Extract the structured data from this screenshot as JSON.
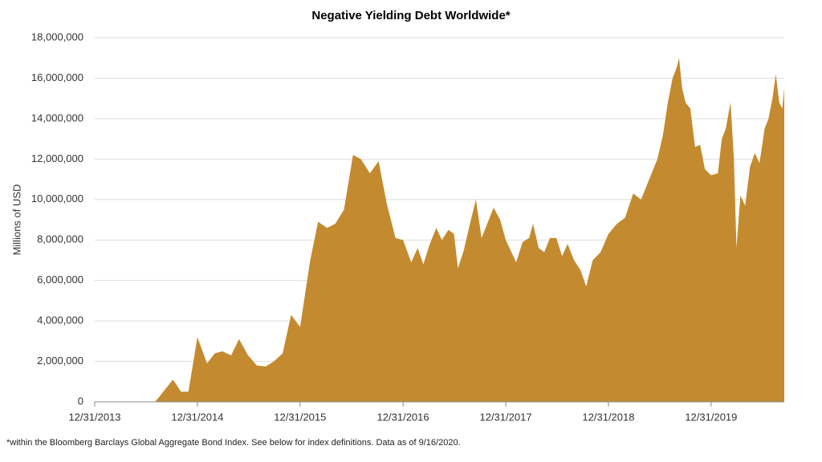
{
  "chart_data": {
    "type": "area",
    "title": "Negative Yielding Debt Worldwide*",
    "y_label": "Millions of USD",
    "footnote": "*within the Bloomberg Barclays Global Aggregate Bond Index. See below for index definitions. Data as of 9/16/2020.",
    "color": "#c48a2f",
    "grid": true,
    "xlim": [
      "12/31/2013",
      "09/16/2020"
    ],
    "xticks": [
      "12/31/2013",
      "12/31/2014",
      "12/31/2015",
      "12/31/2016",
      "12/31/2017",
      "12/31/2018",
      "12/31/2019"
    ],
    "ylim": [
      0,
      18000000
    ],
    "yticks": [
      0,
      {
        "value": 2000000,
        "label": "2,000,000"
      },
      {
        "value": 4000000,
        "label": "4,000,000"
      },
      {
        "value": 6000000,
        "label": "6,000,000"
      },
      {
        "value": 8000000,
        "label": "8,000,000"
      },
      {
        "value": 10000000,
        "label": "10,000,000"
      },
      {
        "value": 12000000,
        "label": "12,000,000"
      },
      {
        "value": 14000000,
        "label": "14,000,000"
      },
      {
        "value": 16000000,
        "label": "16,000,000"
      },
      {
        "value": 18000000,
        "label": "18,000,000"
      }
    ],
    "x": [
      "12/31/2013",
      "08/03/2014",
      "10/05/2014",
      "11/03/2014",
      "11/29/2014",
      "12/31/2014",
      "02/03/2015",
      "03/03/2015",
      "03/29/2015",
      "04/30/2015",
      "05/28/2015",
      "06/29/2015",
      "07/30/2015",
      "08/31/2015",
      "09/29/2015",
      "10/30/2015",
      "11/29/2015",
      "12/31/2015",
      "02/05/2016",
      "03/04/2016",
      "04/05/2016",
      "05/04/2016",
      "06/04/2016",
      "07/06/2016",
      "08/03/2016",
      "09/04/2016",
      "10/05/2016",
      "11/03/2016",
      "12/04/2016",
      "12/31/2016",
      "01/29/2017",
      "02/21/2017",
      "03/13/2017",
      "04/05/2017",
      "04/28/2017",
      "05/18/2017",
      "06/10/2017",
      "06/30/2017",
      "07/14/2017",
      "08/04/2017",
      "08/24/2017",
      "09/16/2017",
      "10/06/2017",
      "10/29/2017",
      "11/18/2017",
      "12/11/2017",
      "12/31/2017",
      "02/06/2018",
      "03/01/2018",
      "03/24/2018",
      "04/07/2018",
      "04/27/2018",
      "05/17/2018",
      "06/06/2018",
      "06/29/2018",
      "07/19/2018",
      "08/08/2018",
      "08/31/2018",
      "09/23/2018",
      "10/13/2018",
      "11/05/2018",
      "12/03/2018",
      "12/31/2018",
      "01/30/2019",
      "02/28/2019",
      "03/29/2019",
      "04/26/2019",
      "05/25/2019",
      "06/23/2019",
      "07/13/2019",
      "07/30/2019",
      "08/16/2019",
      "08/30/2019",
      "09/08/2019",
      "09/19/2019",
      "10/01/2019",
      "10/18/2019",
      "11/04/2019",
      "11/22/2019",
      "12/09/2019",
      "12/31/2019",
      "01/24/2020",
      "02/07/2020",
      "02/21/2020",
      "03/09/2020",
      "03/21/2020",
      "03/30/2020",
      "04/13/2020",
      "04/30/2020",
      "05/17/2020",
      "06/03/2020",
      "06/20/2020",
      "07/08/2020",
      "07/22/2020",
      "08/05/2020",
      "08/17/2020",
      "08/29/2020",
      "09/09/2020",
      "09/16/2020"
    ],
    "values": [
      0,
      0,
      1100000,
      500000,
      500000,
      3200000,
      1900000,
      2400000,
      2500000,
      2300000,
      3100000,
      2300000,
      1800000,
      1750000,
      2000000,
      2400000,
      4300000,
      3700000,
      7000000,
      8900000,
      8600000,
      8800000,
      9500000,
      12200000,
      12000000,
      11300000,
      11900000,
      9800000,
      8100000,
      8000000,
      6900000,
      7600000,
      6800000,
      7800000,
      8600000,
      8000000,
      8500000,
      8300000,
      6600000,
      7500000,
      8700000,
      10000000,
      8100000,
      8900000,
      9600000,
      9000000,
      8000000,
      6900000,
      7900000,
      8100000,
      8800000,
      7600000,
      7400000,
      8100000,
      8100000,
      7200000,
      7800000,
      7000000,
      6500000,
      5700000,
      7000000,
      7400000,
      8300000,
      8800000,
      9100000,
      10300000,
      10000000,
      11000000,
      12000000,
      13200000,
      14800000,
      16000000,
      16500000,
      17000000,
      15500000,
      14800000,
      14500000,
      12600000,
      12700000,
      11500000,
      11200000,
      11300000,
      13000000,
      13500000,
      14800000,
      12000000,
      7600000,
      10200000,
      9700000,
      11600000,
      12300000,
      11800000,
      13500000,
      14000000,
      15000000,
      16200000,
      14800000,
      14500000,
      15500000
    ]
  }
}
